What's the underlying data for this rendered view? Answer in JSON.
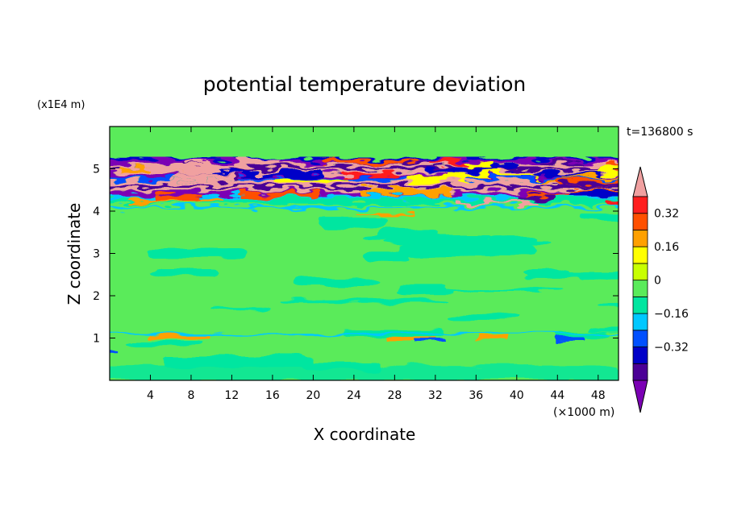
{
  "chart_data": {
    "type": "heatmap",
    "title": "potential temperature deviation",
    "xlabel": "X coordinate",
    "ylabel": "Z coordinate",
    "x_unit_label": "(×1000 m)",
    "y_unit_label": "(x1E4 m)",
    "time_label": "t=136800 s",
    "xlim": [
      0,
      50
    ],
    "ylim": [
      0,
      6
    ],
    "x_ticks": [
      4,
      8,
      12,
      16,
      20,
      24,
      28,
      32,
      36,
      40,
      44,
      48
    ],
    "x_tick_labels": [
      "4",
      "8",
      "12",
      "16",
      "20",
      "24",
      "28",
      "32",
      "36",
      "40",
      "44",
      "48"
    ],
    "y_ticks": [
      1,
      2,
      3,
      4,
      5
    ],
    "y_tick_labels": [
      "1",
      "2",
      "3",
      "4",
      "5"
    ],
    "colorbar": {
      "levels": [
        -0.48,
        -0.4,
        -0.32,
        -0.24,
        -0.16,
        -0.08,
        0,
        0.08,
        0.16,
        0.24,
        0.32,
        0.4,
        0.48
      ],
      "colors": [
        "#7b00b4",
        "#4b0096",
        "#0000c8",
        "#0050ff",
        "#00c8ff",
        "#00e6a0",
        "#5aeb5a",
        "#c8ff00",
        "#ffff00",
        "#ffa000",
        "#ff5000",
        "#ff1e1e",
        "#f0a0a0"
      ],
      "labels": [
        {
          "value": 0.32,
          "text": "0.32"
        },
        {
          "value": 0.16,
          "text": "0.16"
        },
        {
          "value": 0,
          "text": "0"
        },
        {
          "value": -0.16,
          "text": "−0.16"
        },
        {
          "value": -0.32,
          "text": "−0.32"
        }
      ]
    }
  }
}
